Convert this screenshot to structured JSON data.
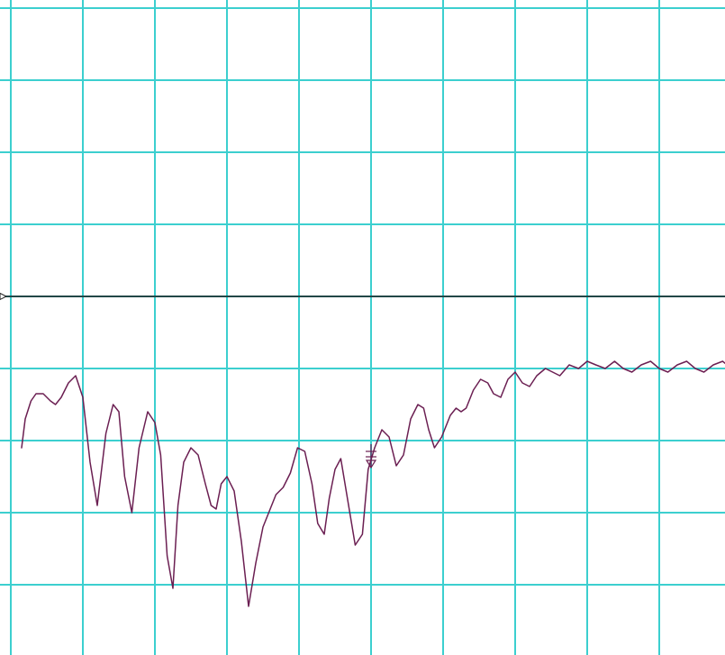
{
  "chart_data": {
    "type": "line",
    "title": "",
    "xlabel": "",
    "ylabel": "",
    "grid": true,
    "xlim": [
      0,
      10
    ],
    "ylim": [
      0,
      10
    ],
    "x_divisions": 10,
    "y_divisions": 10,
    "reference_level": 5,
    "reference_line": true,
    "reference_marker": "arrow-left",
    "marker": {
      "x": 5,
      "y": 2.8,
      "shape": "delta-marker"
    },
    "colors": {
      "background": "#ffffff",
      "grid": "#3ccfcf",
      "trace": "#6b1f52",
      "reference": "#1a1a1a",
      "marker": "#6b1f52"
    },
    "series": [
      {
        "x": [
          0.15,
          0.2,
          0.28,
          0.35,
          0.45,
          0.55,
          0.62,
          0.7,
          0.8,
          0.9,
          1.0,
          1.1,
          1.2,
          1.32,
          1.42,
          1.5,
          1.58,
          1.68,
          1.78,
          1.9,
          2.0,
          2.08,
          2.17,
          2.25,
          2.32,
          2.4,
          2.5,
          2.6,
          2.7,
          2.78,
          2.85,
          2.92,
          3.0,
          3.1,
          3.2,
          3.3,
          3.4,
          3.5,
          3.6,
          3.68,
          3.78,
          3.88,
          3.98,
          4.08,
          4.18,
          4.26,
          4.35,
          4.42,
          4.5,
          4.58,
          4.68,
          4.78,
          4.88,
          4.96,
          5.05,
          5.15,
          5.25,
          5.35,
          5.45,
          5.55,
          5.65,
          5.73,
          5.8,
          5.88,
          5.98,
          6.1,
          6.18,
          6.25,
          6.32,
          6.42,
          6.52,
          6.62,
          6.7,
          6.8,
          6.9,
          7.0,
          7.1,
          7.2,
          7.3,
          7.42,
          7.52,
          7.62,
          7.75,
          7.88,
          8.0,
          8.12,
          8.25,
          8.38,
          8.5,
          8.62,
          8.75,
          8.88,
          9.0,
          9.12,
          9.25,
          9.38,
          9.5,
          9.62,
          9.75,
          9.88,
          10.0
        ],
        "y": [
          2.9,
          3.3,
          3.55,
          3.65,
          3.65,
          3.55,
          3.5,
          3.6,
          3.8,
          3.9,
          3.6,
          2.7,
          2.1,
          3.1,
          3.5,
          3.4,
          2.5,
          2.0,
          2.9,
          3.4,
          3.25,
          2.8,
          1.4,
          0.95,
          2.1,
          2.7,
          2.9,
          2.8,
          2.4,
          2.1,
          2.05,
          2.4,
          2.5,
          2.3,
          1.6,
          0.7,
          1.3,
          1.8,
          2.05,
          2.25,
          2.35,
          2.55,
          2.9,
          2.85,
          2.4,
          1.85,
          1.7,
          2.2,
          2.6,
          2.75,
          2.15,
          1.55,
          1.7,
          2.6,
          2.9,
          3.15,
          3.05,
          2.65,
          2.8,
          3.3,
          3.5,
          3.45,
          3.15,
          2.9,
          3.05,
          3.35,
          3.45,
          3.4,
          3.45,
          3.7,
          3.85,
          3.8,
          3.65,
          3.6,
          3.85,
          3.95,
          3.8,
          3.75,
          3.9,
          4.0,
          3.95,
          3.9,
          4.05,
          4.0,
          4.1,
          4.05,
          4.0,
          4.1,
          4.0,
          3.95,
          4.05,
          4.1,
          4.0,
          3.95,
          4.05,
          4.1,
          4.0,
          3.95,
          4.05,
          4.1,
          4.0
        ]
      }
    ]
  }
}
